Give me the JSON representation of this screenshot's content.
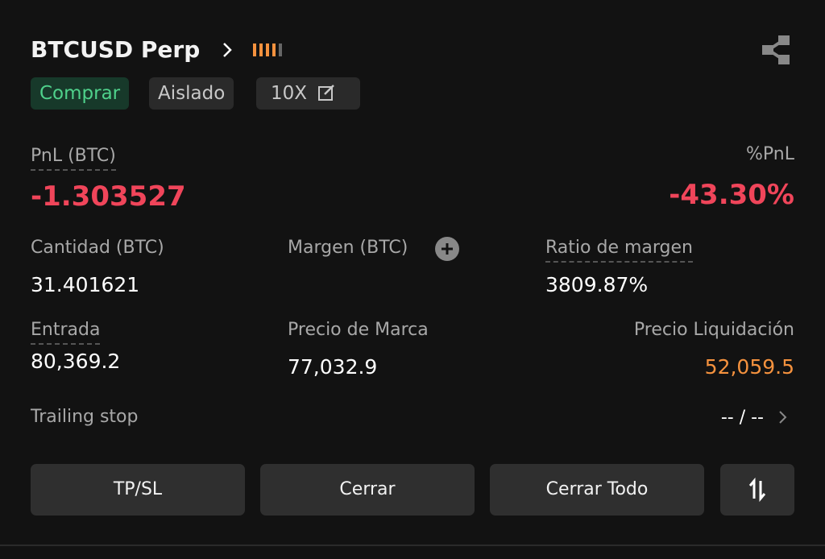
{
  "header": {
    "title": "BTCUSD Perp",
    "tags": [
      "Comprar",
      "Aislado",
      "10X"
    ]
  },
  "pnl": {
    "label": "PnL (BTC)",
    "value": "-1.303527",
    "percent_label": "%PnL",
    "percent_value": "-43.30%"
  },
  "fields": [
    {
      "label": "Cantidad (BTC)",
      "value": "31.401621"
    },
    {
      "label": "Margen (BTC)"
    },
    {
      "label": "Ratio de margen",
      "value": "3809.87%"
    },
    {
      "label": "Entrada",
      "value": "80,369.2"
    },
    {
      "label": "Precio de Marca",
      "value": "77,032.9"
    },
    {
      "label": "Precio Liquidación",
      "value": "52,059.5"
    }
  ],
  "trailing_stop": {
    "label": "Trailing stop",
    "value": "-- / --"
  },
  "buttons": [
    "TP/SL",
    "Cerrar",
    "Cerrar Todo"
  ]
}
